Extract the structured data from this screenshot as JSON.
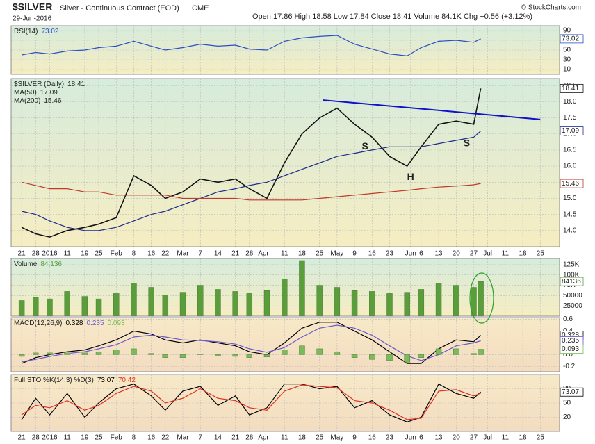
{
  "header": {
    "symbol": "$SILVER",
    "description": "Silver - Continuous Contract (EOD)",
    "exchange": "CME",
    "date": "29-Jun-2016",
    "quote": "Open 17.86  High 18.58  Low 17.84  Close 18.41  Volume 84.1K  Chg +0.56 (+3.12%)",
    "source": "© StockCharts.com"
  },
  "x_axis": {
    "xlim": [
      -3,
      153.5
    ],
    "xticks": [
      {
        "value": 0,
        "label": "21"
      },
      {
        "value": 4,
        "label": "28"
      },
      {
        "value": 8,
        "label": "2016"
      },
      {
        "value": 13,
        "label": "11"
      },
      {
        "value": 18,
        "label": "19"
      },
      {
        "value": 22,
        "label": "25"
      },
      {
        "value": 27,
        "label": "Feb"
      },
      {
        "value": 32,
        "label": "8"
      },
      {
        "value": 37,
        "label": "16"
      },
      {
        "value": 41,
        "label": "22"
      },
      {
        "value": 46,
        "label": "Mar"
      },
      {
        "value": 51,
        "label": "7"
      },
      {
        "value": 56,
        "label": "14"
      },
      {
        "value": 61,
        "label": "21"
      },
      {
        "value": 65,
        "label": "28"
      },
      {
        "value": 69,
        "label": "Apr"
      },
      {
        "value": 75,
        "label": "11"
      },
      {
        "value": 80,
        "label": "18"
      },
      {
        "value": 85,
        "label": "25"
      },
      {
        "value": 90,
        "label": "May"
      },
      {
        "value": 95,
        "label": "9"
      },
      {
        "value": 100,
        "label": "16"
      },
      {
        "value": 105,
        "label": "23"
      },
      {
        "value": 111,
        "label": "Jun"
      },
      {
        "value": 114,
        "label": "6"
      },
      {
        "value": 119,
        "label": "13"
      },
      {
        "value": 124,
        "label": "20"
      },
      {
        "value": 129,
        "label": "27"
      },
      {
        "value": 133,
        "label": "Jul"
      },
      {
        "value": 138,
        "label": "11"
      },
      {
        "value": 143,
        "label": "18"
      },
      {
        "value": 148,
        "label": "25"
      }
    ]
  },
  "chart_data": [
    {
      "type": "line",
      "label": "RSI(14)",
      "ylim": [
        0,
        100
      ],
      "yticks": [
        90,
        70,
        50,
        30,
        10
      ],
      "x": [
        0,
        4,
        8,
        13,
        18,
        22,
        27,
        32,
        37,
        41,
        46,
        51,
        56,
        61,
        65,
        70,
        75,
        80,
        85,
        90,
        95,
        100,
        105,
        110,
        114,
        119,
        124,
        129,
        131
      ],
      "series": [
        {
          "color": "#2a4fc7",
          "last_value_box": true,
          "values": [
            40,
            45,
            42,
            48,
            50,
            55,
            58,
            68,
            58,
            50,
            55,
            62,
            58,
            60,
            52,
            50,
            68,
            75,
            78,
            80,
            62,
            52,
            42,
            38,
            55,
            68,
            70,
            66,
            73.02
          ]
        }
      ]
    },
    {
      "type": "line",
      "ylim": [
        13.5,
        18.72
      ],
      "yticks": [
        {
          "value": 14,
          "label": "14.0"
        },
        14.5,
        {
          "value": 15,
          "label": "15.0"
        },
        15.5,
        {
          "value": 16,
          "label": "16.0"
        },
        16.5,
        {
          "value": 17,
          "label": "17.0"
        },
        17.5,
        {
          "value": 18,
          "label": "18.0"
        },
        18.5
      ],
      "x": [
        0,
        4,
        8,
        13,
        18,
        22,
        27,
        32,
        37,
        41,
        46,
        51,
        56,
        61,
        65,
        70,
        75,
        80,
        85,
        90,
        95,
        100,
        105,
        110,
        114,
        119,
        124,
        129,
        131
      ],
      "series": [
        {
          "name": "$SILVER (Daily)",
          "color": "#111111",
          "last_value_box": true,
          "values": [
            14.1,
            13.9,
            13.8,
            14.0,
            14.1,
            14.2,
            14.4,
            15.7,
            15.4,
            15.0,
            15.2,
            15.6,
            15.5,
            15.6,
            15.3,
            15.0,
            16.1,
            17.0,
            17.5,
            17.8,
            17.3,
            16.9,
            16.3,
            16.0,
            16.6,
            17.3,
            17.4,
            17.3,
            18.41
          ]
        },
        {
          "name": "MA(50)",
          "color": "#1c2a8f",
          "last_value_box": true,
          "values": [
            14.6,
            14.5,
            14.3,
            14.1,
            14.0,
            14.0,
            14.1,
            14.3,
            14.5,
            14.6,
            14.8,
            15.0,
            15.2,
            15.3,
            15.4,
            15.5,
            15.7,
            15.9,
            16.1,
            16.3,
            16.4,
            16.5,
            16.6,
            16.6,
            16.6,
            16.7,
            16.8,
            16.9,
            17.09
          ]
        },
        {
          "name": "MA(200)",
          "color": "#c0392b",
          "last_value_box": true,
          "values": [
            15.5,
            15.4,
            15.3,
            15.3,
            15.2,
            15.2,
            15.1,
            15.1,
            15.1,
            15.1,
            15.0,
            15.0,
            15.0,
            15.0,
            14.95,
            14.95,
            14.95,
            14.95,
            15.0,
            15.05,
            15.1,
            15.15,
            15.2,
            15.25,
            15.3,
            15.35,
            15.38,
            15.42,
            15.46
          ]
        }
      ],
      "trendline": {
        "color": "#1010cc",
        "x": [
          86,
          148
        ],
        "values": [
          18.05,
          17.45
        ]
      },
      "annotations": [
        {
          "text": "S",
          "color": "#e0399a",
          "x": 98,
          "y": 16.6
        },
        {
          "text": "H",
          "color": "#e0399a",
          "x": 111,
          "y": 15.65
        },
        {
          "text": "S",
          "color": "#e0399a",
          "x": 127,
          "y": 16.7
        }
      ]
    },
    {
      "type": "bar",
      "label": "Volume",
      "ylim": [
        0,
        140000
      ],
      "yticks": [
        25000,
        50000,
        {
          "value": 75000,
          "label": "75K"
        },
        {
          "value": 100000,
          "label": "100K"
        },
        {
          "value": 125000,
          "label": "125K"
        }
      ],
      "x": [
        0,
        4,
        8,
        13,
        18,
        22,
        27,
        32,
        37,
        41,
        46,
        51,
        56,
        61,
        65,
        70,
        75,
        80,
        85,
        90,
        95,
        100,
        105,
        110,
        114,
        119,
        124,
        129,
        131
      ],
      "series": [
        {
          "color": "#5a9e3c",
          "last_value_box": true,
          "values": [
            38000,
            45000,
            42000,
            60000,
            48000,
            42000,
            55000,
            80000,
            70000,
            52000,
            58000,
            75000,
            65000,
            60000,
            55000,
            62000,
            90000,
            135000,
            75000,
            70000,
            62000,
            60000,
            55000,
            58000,
            65000,
            80000,
            75000,
            70000,
            84136
          ],
          "value_labels": [
            null,
            null,
            null,
            null,
            null,
            null,
            null,
            null,
            null,
            null,
            null,
            null,
            null,
            null,
            null,
            null,
            null,
            null,
            null,
            null,
            null,
            null,
            null,
            null,
            null,
            null,
            null,
            null,
            "84,136"
          ]
        }
      ]
    },
    {
      "type": "line",
      "label": "MACD(12,26,9)",
      "ylim": [
        -0.29,
        0.63
      ],
      "yticks": [
        -0.2,
        {
          "value": 0,
          "label": "0.0"
        },
        0.2,
        0.4,
        0.6
      ],
      "x": [
        0,
        4,
        8,
        13,
        18,
        22,
        27,
        32,
        37,
        41,
        46,
        51,
        56,
        61,
        65,
        70,
        75,
        80,
        85,
        90,
        95,
        100,
        105,
        110,
        114,
        119,
        124,
        129,
        131
      ],
      "series": [
        {
          "color": "#000000",
          "last_value_box": true,
          "values": [
            -0.15,
            -0.05,
            0.0,
            0.05,
            0.08,
            0.15,
            0.25,
            0.4,
            0.35,
            0.25,
            0.2,
            0.25,
            0.2,
            0.15,
            0.05,
            0.0,
            0.2,
            0.45,
            0.55,
            0.55,
            0.4,
            0.25,
            0.05,
            -0.15,
            -0.15,
            0.1,
            0.25,
            0.22,
            0.328
          ]
        },
        {
          "color": "#6a5acd",
          "last_value_box": true,
          "values": [
            -0.12,
            -0.08,
            -0.03,
            0.02,
            0.05,
            0.1,
            0.17,
            0.3,
            0.33,
            0.3,
            0.25,
            0.24,
            0.22,
            0.18,
            0.1,
            0.04,
            0.12,
            0.3,
            0.45,
            0.5,
            0.45,
            0.33,
            0.15,
            -0.02,
            -0.1,
            0.0,
            0.15,
            0.2,
            0.235
          ]
        },
        {
          "type": "bar",
          "color": "#7cbb5a",
          "last_value_box": true,
          "values": [
            -0.03,
            0.03,
            0.03,
            0.03,
            0.03,
            0.05,
            0.08,
            0.1,
            0.02,
            -0.05,
            -0.05,
            0.01,
            -0.02,
            -0.03,
            -0.05,
            -0.04,
            0.08,
            0.15,
            0.1,
            0.05,
            -0.05,
            -0.08,
            -0.1,
            -0.13,
            -0.05,
            0.1,
            0.1,
            0.02,
            0.093
          ]
        }
      ]
    },
    {
      "type": "line",
      "label": "Full STO %K(14,3) %D(3)",
      "ylim": [
        -10,
        110
      ],
      "yticks": [
        20,
        50,
        80
      ],
      "x": [
        0,
        4,
        8,
        13,
        18,
        22,
        27,
        32,
        37,
        41,
        46,
        51,
        56,
        61,
        65,
        70,
        75,
        80,
        85,
        90,
        95,
        100,
        105,
        110,
        114,
        119,
        124,
        129,
        131
      ],
      "series": [
        {
          "color": "#000000",
          "last_value_box": true,
          "values": [
            15,
            60,
            25,
            70,
            20,
            50,
            80,
            90,
            65,
            35,
            75,
            85,
            45,
            65,
            25,
            40,
            90,
            90,
            80,
            85,
            40,
            55,
            25,
            10,
            20,
            90,
            70,
            60,
            73.07
          ]
        },
        {
          "color": "#e03020",
          "values": [
            25,
            45,
            40,
            55,
            35,
            45,
            70,
            85,
            75,
            50,
            60,
            80,
            60,
            55,
            40,
            35,
            75,
            88,
            85,
            82,
            55,
            50,
            35,
            15,
            18,
            75,
            78,
            65,
            70.42
          ]
        }
      ]
    }
  ]
}
